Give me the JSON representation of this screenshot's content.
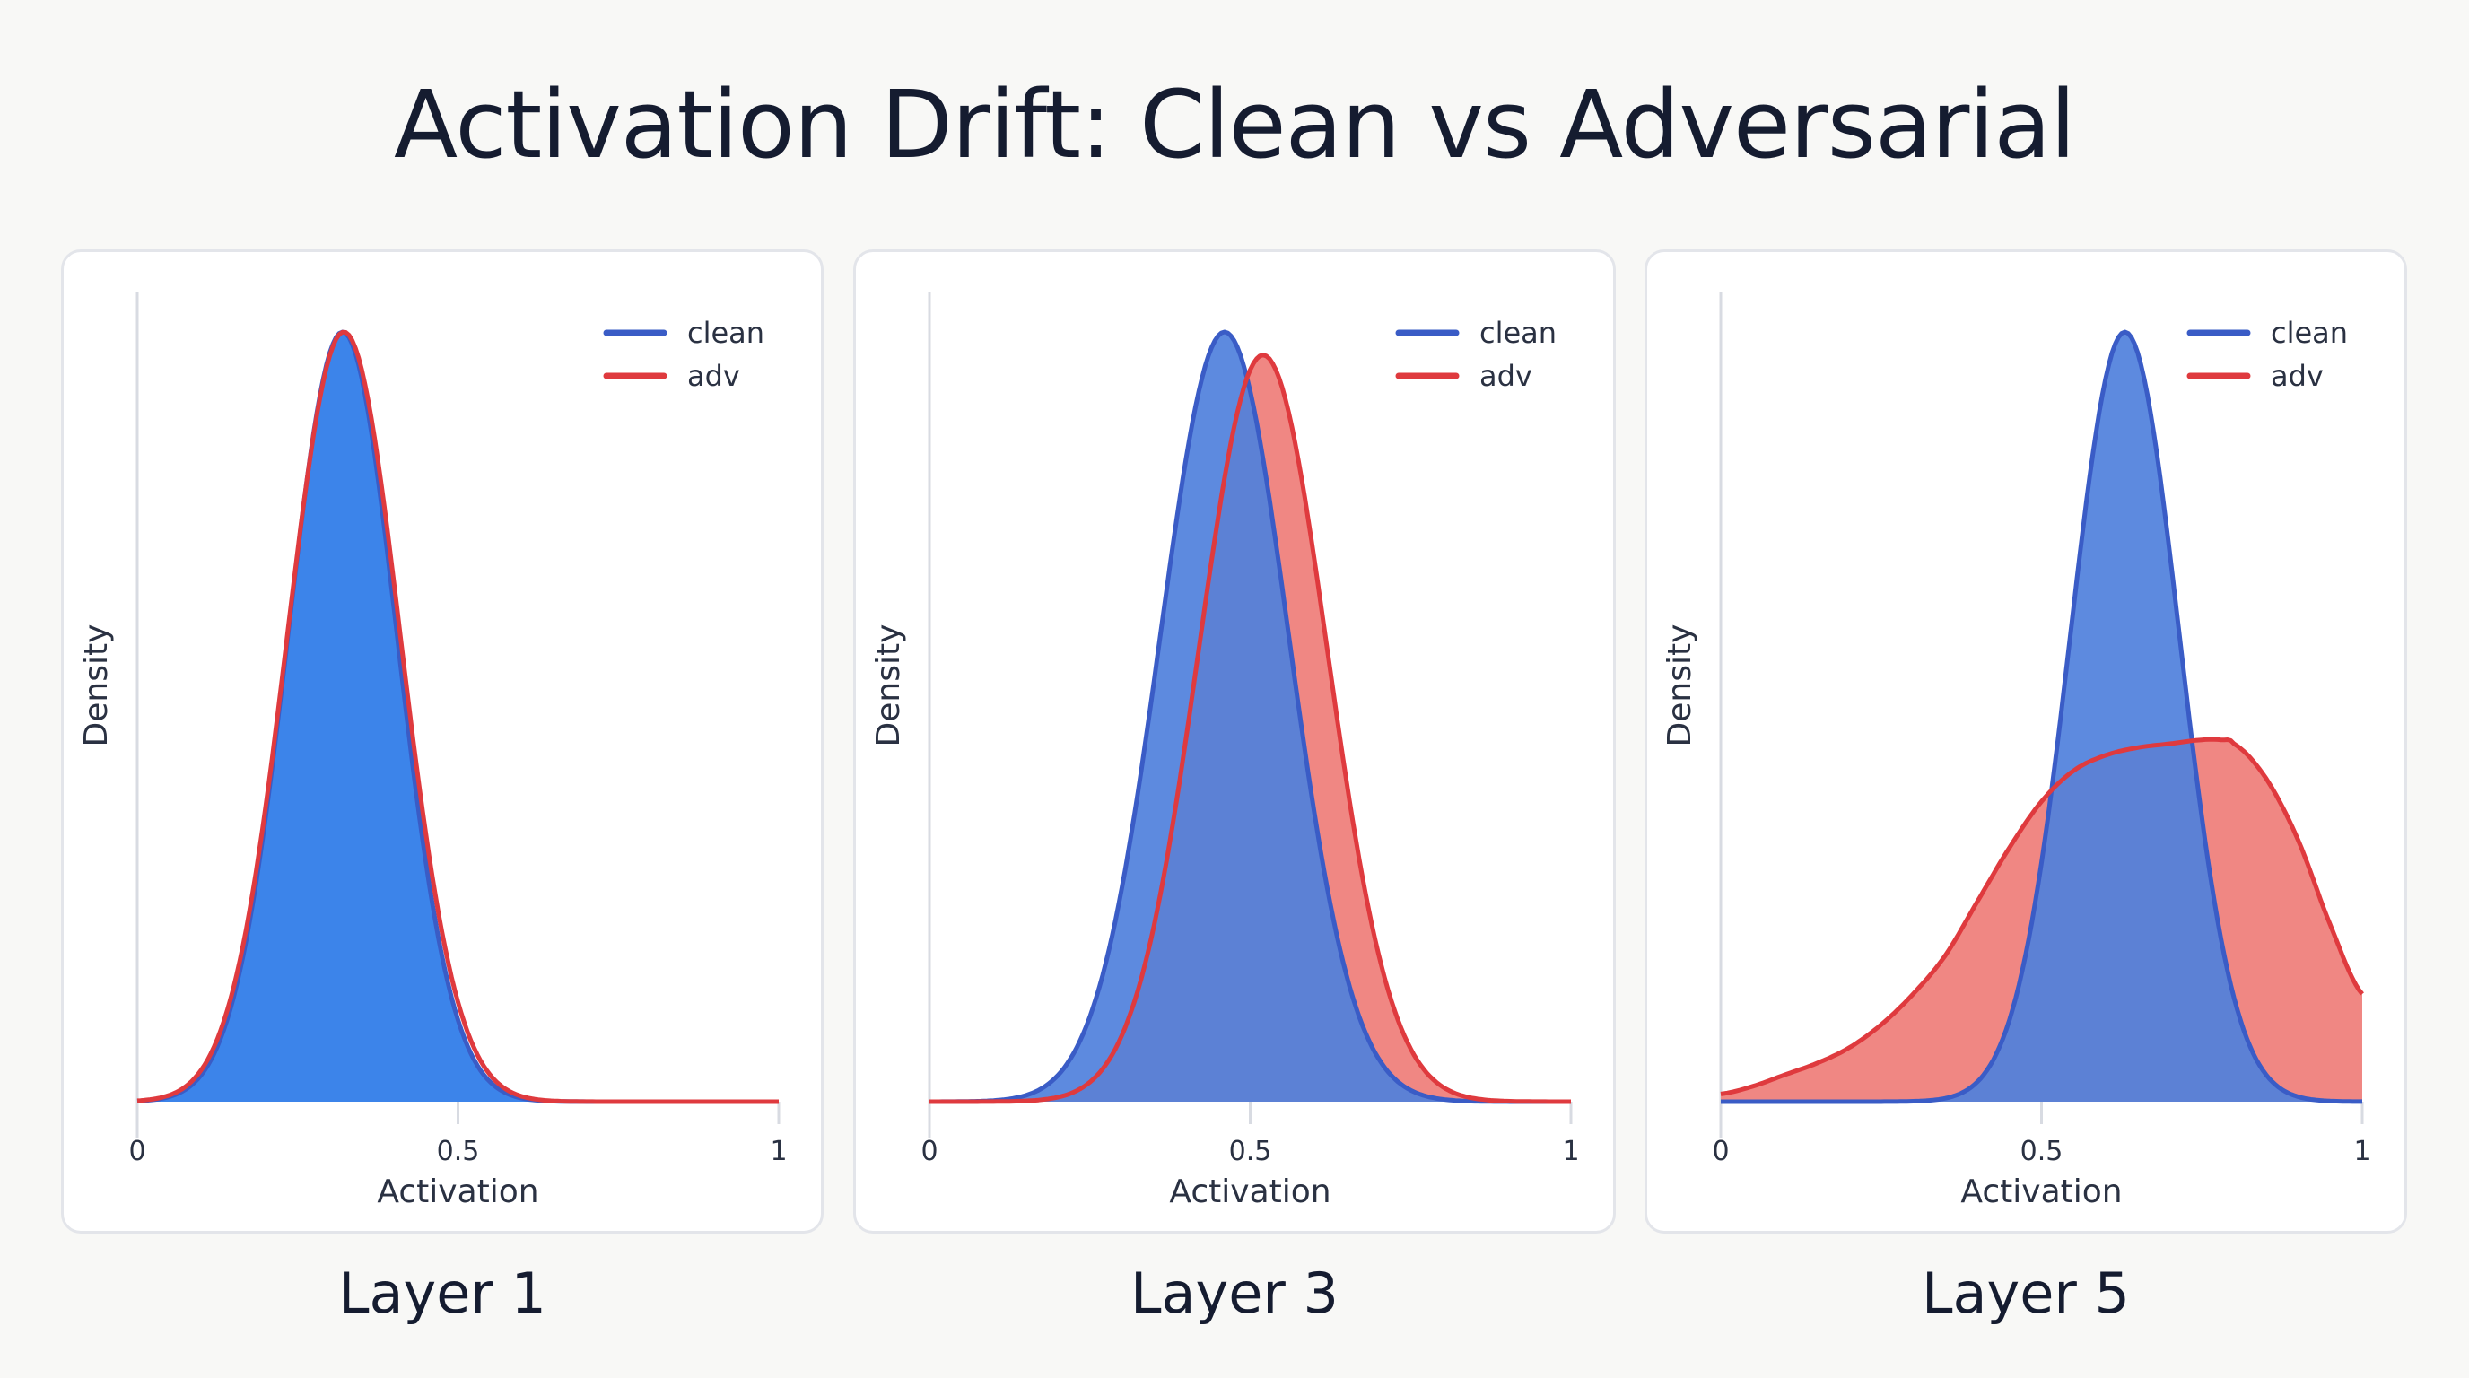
{
  "title": "Activation Drift: Clean vs Adversarial",
  "colors": {
    "clean_line": "#3a5cc6",
    "clean_fill_layer1": "#3c84ea",
    "clean_fill": "#4f80dc",
    "adv_line": "#df3a3e",
    "adv_fill": "#f08783",
    "axis": "#d8dbe2",
    "text": "#2a3142"
  },
  "chart_data": [
    {
      "type": "area",
      "title": "Layer 1",
      "xlabel": "Activation",
      "ylabel": "Density",
      "xlim": [
        0,
        1
      ],
      "xticks": [
        "0",
        "0.5",
        "1"
      ],
      "legend": [
        "clean",
        "adv"
      ],
      "legend_position": "upper right",
      "grid": false,
      "series": [
        {
          "name": "clean",
          "kind": "gaussian",
          "mean": 0.32,
          "sd": 0.085,
          "peak": 1.0
        },
        {
          "name": "adv",
          "kind": "gaussian",
          "mean": 0.322,
          "sd": 0.088,
          "peak": 1.0
        }
      ]
    },
    {
      "type": "area",
      "title": "Layer 3",
      "xlabel": "Activation",
      "ylabel": "Density",
      "xlim": [
        0,
        1
      ],
      "xticks": [
        "0",
        "0.5",
        "1"
      ],
      "legend": [
        "clean",
        "adv"
      ],
      "legend_position": "upper right",
      "grid": false,
      "series": [
        {
          "name": "clean",
          "kind": "gaussian",
          "mean": 0.46,
          "sd": 0.1,
          "peak": 1.0
        },
        {
          "name": "adv",
          "kind": "gaussian",
          "mean": 0.52,
          "sd": 0.1,
          "peak": 0.97
        }
      ]
    },
    {
      "type": "area",
      "title": "Layer 5",
      "xlabel": "Activation",
      "ylabel": "Density",
      "xlim": [
        0,
        1
      ],
      "xticks": [
        "0",
        "0.5",
        "1"
      ],
      "legend": [
        "clean",
        "adv"
      ],
      "legend_position": "upper right",
      "grid": false,
      "series": [
        {
          "name": "clean",
          "kind": "gaussian",
          "mean": 0.63,
          "sd": 0.085,
          "peak": 1.0
        },
        {
          "name": "adv",
          "kind": "points",
          "x": [
            0,
            0.05,
            0.1,
            0.15,
            0.2,
            0.25,
            0.3,
            0.35,
            0.4,
            0.45,
            0.5,
            0.55,
            0.6,
            0.65,
            0.7,
            0.75,
            0.78,
            0.8,
            0.85,
            0.9,
            0.95,
            1.0
          ],
          "y": [
            0.01,
            0.02,
            0.035,
            0.05,
            0.07,
            0.1,
            0.14,
            0.19,
            0.26,
            0.33,
            0.39,
            0.43,
            0.45,
            0.46,
            0.465,
            0.47,
            0.47,
            0.465,
            0.42,
            0.34,
            0.23,
            0.14
          ]
        }
      ]
    }
  ],
  "panels": [
    {
      "label": "Layer 1"
    },
    {
      "label": "Layer 3"
    },
    {
      "label": "Layer 5"
    }
  ]
}
